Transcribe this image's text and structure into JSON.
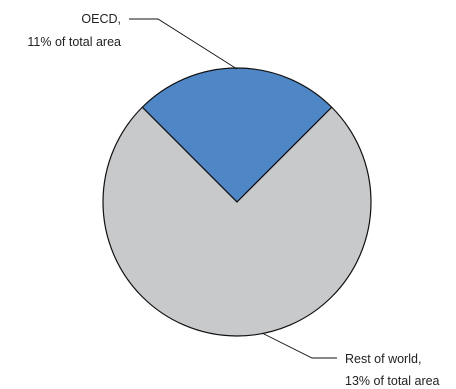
{
  "chart_data": {
    "type": "pie",
    "title": "",
    "slices": [
      {
        "label_line1": "OECD,",
        "label_line2": "11% of total area",
        "share_of_circle": 0.25,
        "color": "#4f86c6"
      },
      {
        "label_line1": "Rest of world,",
        "label_line2": "13% of total area",
        "share_of_circle": 0.75,
        "color": "#c8c9cb"
      }
    ],
    "outline_color": "#111111",
    "background": "#ffffff"
  }
}
